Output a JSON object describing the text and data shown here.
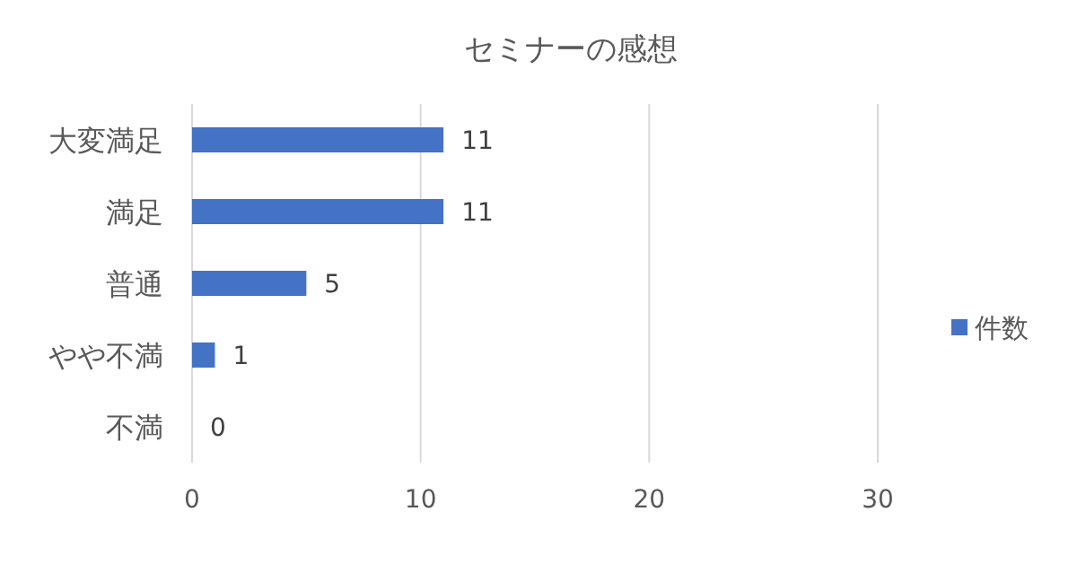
{
  "chart_data": {
    "type": "bar",
    "orientation": "horizontal",
    "title": "セミナーの感想",
    "categories": [
      "大変満足",
      "満足",
      "普通",
      "やや不満",
      "不満"
    ],
    "series": [
      {
        "name": "件数",
        "color": "#4472c4",
        "values": [
          11,
          11,
          5,
          1,
          0
        ]
      }
    ],
    "xlim": [
      0,
      30
    ],
    "xticks": [
      0,
      10,
      20,
      30
    ],
    "grid": "x",
    "legend": "right",
    "data_labels": true
  }
}
